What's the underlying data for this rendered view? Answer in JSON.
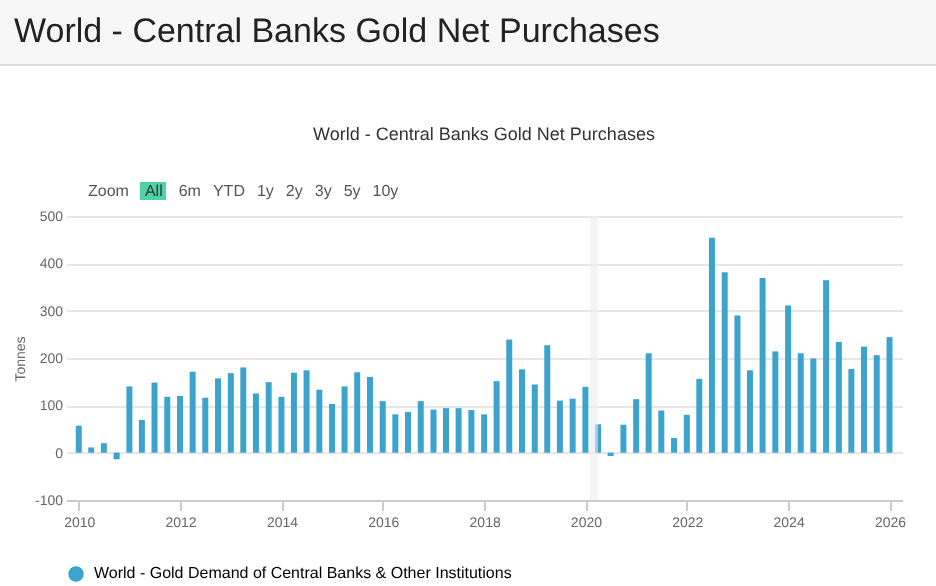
{
  "chart_data": {
    "type": "bar",
    "title": "World - Central Banks Gold Net Purchases",
    "subtitle": "World - Central Banks Gold Net Purchases",
    "ylabel": "Tonnes",
    "annotations": [
      "Zoom",
      "All",
      "6m",
      "YTD",
      "1y",
      "2y",
      "3y",
      "5y",
      "10y"
    ],
    "x": [
      "2010-01",
      "2010-04",
      "2010-07",
      "2010-10",
      "2011-01",
      "2011-04",
      "2011-07",
      "2011-10",
      "2012-01",
      "2012-04",
      "2012-07",
      "2012-10",
      "2013-01",
      "2013-04",
      "2013-07",
      "2013-10",
      "2014-01",
      "2014-04",
      "2014-07",
      "2014-10",
      "2015-01",
      "2015-04",
      "2015-07",
      "2015-10",
      "2016-01",
      "2016-04",
      "2016-07",
      "2016-10",
      "2017-01",
      "2017-04",
      "2017-07",
      "2017-10",
      "2018-01",
      "2018-04",
      "2018-07",
      "2018-10",
      "2019-01",
      "2019-04",
      "2019-07",
      "2019-10",
      "2020-01",
      "2020-04",
      "2020-07",
      "2020-10",
      "2021-01",
      "2021-04",
      "2021-07",
      "2021-10",
      "2022-01",
      "2022-04",
      "2022-07",
      "2022-10",
      "2023-01",
      "2023-04",
      "2023-07",
      "2023-10",
      "2024-01",
      "2024-04",
      "2024-07",
      "2024-10",
      "2025-01",
      "2025-04",
      "2025-07",
      "2025-10",
      "2026-01"
    ],
    "series": [
      {
        "name": "World - Gold Demand of Central Banks & Other Institutions",
        "color": "#3ba3cc",
        "values": [
          57,
          11,
          20,
          -14,
          140,
          69,
          148,
          118,
          120,
          171,
          116,
          157,
          168,
          180,
          125,
          149,
          118,
          169,
          174,
          133,
          103,
          140,
          170,
          160,
          109,
          81,
          86,
          109,
          91,
          94,
          94,
          90,
          81,
          151,
          239,
          176,
          144,
          227,
          110,
          114,
          139,
          60,
          -7,
          59,
          113,
          210,
          89,
          31,
          80,
          156,
          454,
          381,
          290,
          174,
          369,
          214,
          311,
          210,
          199,
          364,
          234,
          177,
          224,
          206,
          244
        ]
      }
    ],
    "xlim": [
      "2009-10",
      "2026-04"
    ],
    "xticks": [
      "2010",
      "2012",
      "2014",
      "2016",
      "2018",
      "2020",
      "2022",
      "2024",
      "2026"
    ],
    "ylim": [
      -100,
      500
    ],
    "yticks": [
      -100,
      0,
      100,
      200,
      300,
      400,
      500
    ],
    "grid": "y",
    "legend": "bottom",
    "bands": [
      {
        "axis": "x",
        "from": "2020-02",
        "to": "2020-04",
        "color": "#ececec"
      }
    ]
  }
}
